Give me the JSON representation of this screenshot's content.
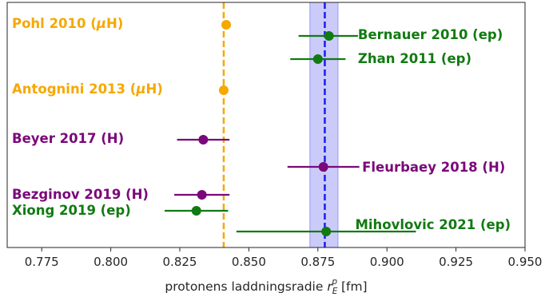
{
  "chart_data": {
    "type": "scatter",
    "xlim": [
      0.7625,
      0.95
    ],
    "xticks": [
      "0.775",
      "0.800",
      "0.825",
      "0.850",
      "0.875",
      "0.900",
      "0.925",
      "0.950"
    ],
    "xlabel": {
      "prefix": "protonens laddningsradie ",
      "symbol": "r",
      "sub": "E",
      "sup": "p",
      "suffix": " [fm]"
    },
    "grid": false,
    "colors": {
      "muonic": "#f5a800",
      "ep": "#127a12",
      "hydrogen": "#7a087a",
      "band": "#6b6bf0",
      "band_line": "#1c1cf0"
    },
    "reference_lines": [
      {
        "x": 0.8409,
        "color": "#f5a800",
        "style": "dashed"
      },
      {
        "x": 0.8775,
        "color": "#1c1cf0",
        "style": "dashed",
        "band": [
          0.8721,
          0.8823
        ]
      }
    ],
    "points": [
      {
        "label": "Pohl 2010 (",
        "mu": "μ",
        "label_end": "H)",
        "x": 0.8418,
        "xerr": [
          0.0007,
          0.0007
        ],
        "group": "muonic",
        "label_side": "left",
        "label_x": 0.7625
      },
      {
        "label": "Bernauer 2010 (ep)",
        "x": 0.879,
        "xerr": [
          0.011,
          0.0105
        ],
        "group": "ep",
        "label_side": "right",
        "label_x": 0.8895
      },
      {
        "label": "Zhan 2011 (ep)",
        "x": 0.875,
        "xerr": [
          0.01,
          0.01
        ],
        "group": "ep",
        "label_side": "right",
        "label_x": 0.8895
      },
      {
        "label": "Antognini 2013 (",
        "mu": "μ",
        "label_end": "H)",
        "x": 0.8409,
        "xerr": [
          0.0004,
          0.0004
        ],
        "group": "muonic",
        "label_side": "left",
        "label_x": 0.7625
      },
      {
        "label": "Beyer 2017 (H)",
        "x": 0.8335,
        "xerr": [
          0.0095,
          0.0095
        ],
        "group": "hydrogen",
        "label_side": "left",
        "label_x": 0.7625
      },
      {
        "label": "Fleurbaey 2018 (H)",
        "x": 0.877,
        "xerr": [
          0.013,
          0.013
        ],
        "group": "hydrogen",
        "label_side": "right",
        "label_x": 0.891
      },
      {
        "label": "Bezginov 2019 (H)",
        "x": 0.833,
        "xerr": [
          0.01,
          0.01
        ],
        "group": "hydrogen",
        "label_side": "left",
        "label_x": 0.7625
      },
      {
        "label": "Xiong 2019 (ep)",
        "x": 0.831,
        "xerr": [
          0.0115,
          0.0115
        ],
        "group": "ep",
        "label_side": "left",
        "label_x": 0.7625
      },
      {
        "label": "Mihovlovic 2021 (ep)",
        "x": 0.878,
        "xerr": [
          0.0325,
          0.0325
        ],
        "group": "ep",
        "label_side": "right",
        "label_x": 0.8885
      }
    ]
  }
}
